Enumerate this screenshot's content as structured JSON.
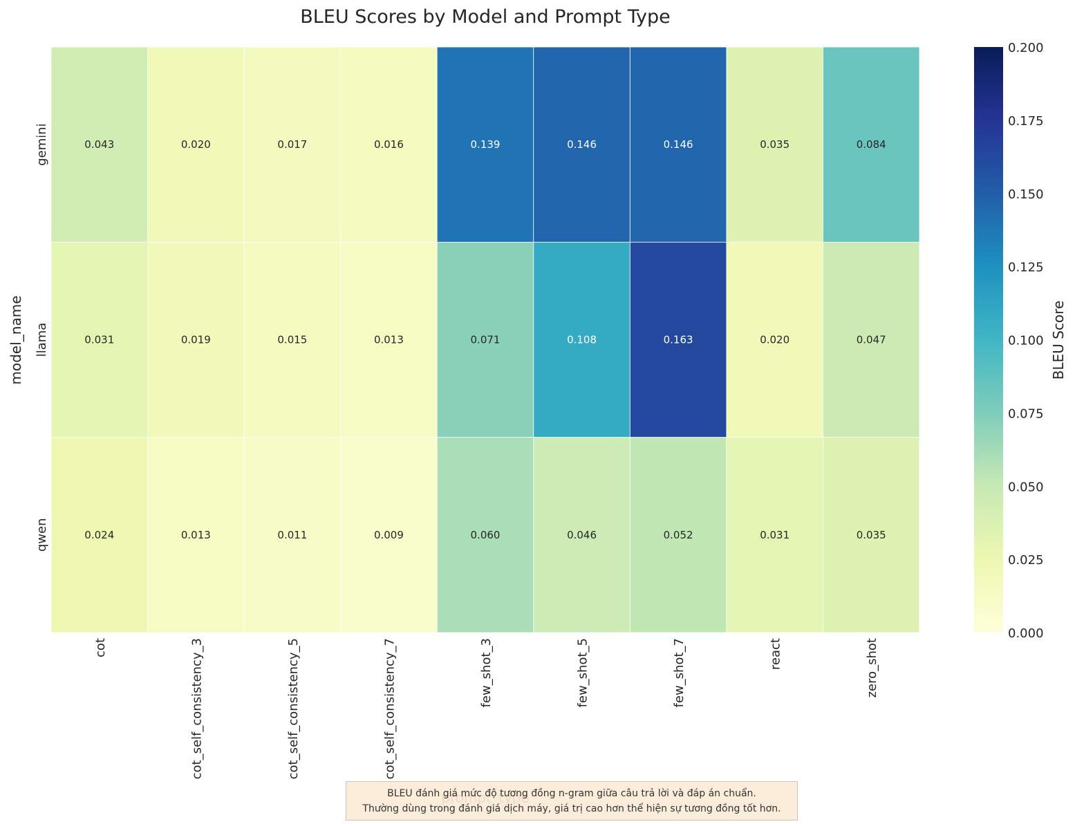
{
  "chart_data": {
    "type": "heatmap",
    "title": "BLEU Scores by Model and Prompt Type",
    "xlabel": "prompt_type",
    "ylabel": "model_name",
    "x_categories": [
      "cot",
      "cot_self_consistency_3",
      "cot_self_consistency_5",
      "cot_self_consistency_7",
      "few_shot_3",
      "few_shot_5",
      "few_shot_7",
      "react",
      "zero_shot"
    ],
    "y_categories": [
      "gemini",
      "llama",
      "qwen"
    ],
    "values": [
      [
        0.043,
        0.02,
        0.017,
        0.016,
        0.139,
        0.146,
        0.146,
        0.035,
        0.084
      ],
      [
        0.031,
        0.019,
        0.015,
        0.013,
        0.071,
        0.108,
        0.163,
        0.02,
        0.047
      ],
      [
        0.024,
        0.013,
        0.011,
        0.009,
        0.06,
        0.046,
        0.052,
        0.031,
        0.035
      ]
    ],
    "value_format": "0.000",
    "colormap": "YlGnBu",
    "vmin": 0.0,
    "vmax": 0.2,
    "colorbar": {
      "label": "BLEU Score",
      "ticks": [
        "0.000",
        "0.025",
        "0.050",
        "0.075",
        "0.100",
        "0.125",
        "0.150",
        "0.175",
        "0.200"
      ]
    }
  },
  "note": {
    "line1": "BLEU đánh giá mức độ tương đồng n-gram giữa câu trả lời và đáp án chuẩn.",
    "line2": "Thường dùng trong đánh giá dịch máy, giá trị cao hơn thể hiện sự tương đồng tốt hơn."
  }
}
